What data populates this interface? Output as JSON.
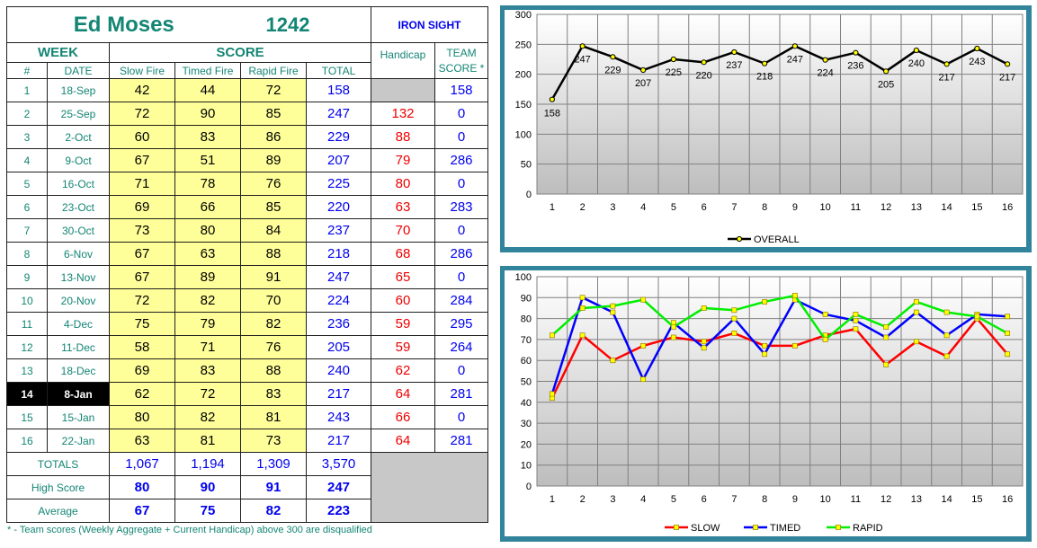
{
  "shooter": {
    "name": "Ed Moses",
    "id": "1242",
    "class": "IRON SIGHT"
  },
  "headers": {
    "week": "WEEK",
    "score": "SCORE",
    "handicap": "Handicap",
    "team_score": "TEAM SCORE *",
    "num": "#",
    "date": "DATE",
    "slow": "Slow Fire",
    "timed": "Timed Fire",
    "rapid": "Rapid Fire",
    "total": "TOTAL"
  },
  "rows": [
    {
      "n": "1",
      "date": "18-Sep",
      "slow": "42",
      "timed": "44",
      "rapid": "72",
      "total": "158",
      "handicap": "",
      "team": "158"
    },
    {
      "n": "2",
      "date": "25-Sep",
      "slow": "72",
      "timed": "90",
      "rapid": "85",
      "total": "247",
      "handicap": "132",
      "team": "0"
    },
    {
      "n": "3",
      "date": "2-Oct",
      "slow": "60",
      "timed": "83",
      "rapid": "86",
      "total": "229",
      "handicap": "88",
      "team": "0"
    },
    {
      "n": "4",
      "date": "9-Oct",
      "slow": "67",
      "timed": "51",
      "rapid": "89",
      "total": "207",
      "handicap": "79",
      "team": "286"
    },
    {
      "n": "5",
      "date": "16-Oct",
      "slow": "71",
      "timed": "78",
      "rapid": "76",
      "total": "225",
      "handicap": "80",
      "team": "0"
    },
    {
      "n": "6",
      "date": "23-Oct",
      "slow": "69",
      "timed": "66",
      "rapid": "85",
      "total": "220",
      "handicap": "63",
      "team": "283"
    },
    {
      "n": "7",
      "date": "30-Oct",
      "slow": "73",
      "timed": "80",
      "rapid": "84",
      "total": "237",
      "handicap": "70",
      "team": "0"
    },
    {
      "n": "8",
      "date": "6-Nov",
      "slow": "67",
      "timed": "63",
      "rapid": "88",
      "total": "218",
      "handicap": "68",
      "team": "286"
    },
    {
      "n": "9",
      "date": "13-Nov",
      "slow": "67",
      "timed": "89",
      "rapid": "91",
      "total": "247",
      "handicap": "65",
      "team": "0"
    },
    {
      "n": "10",
      "date": "20-Nov",
      "slow": "72",
      "timed": "82",
      "rapid": "70",
      "total": "224",
      "handicap": "60",
      "team": "284"
    },
    {
      "n": "11",
      "date": "4-Dec",
      "slow": "75",
      "timed": "79",
      "rapid": "82",
      "total": "236",
      "handicap": "59",
      "team": "295"
    },
    {
      "n": "12",
      "date": "11-Dec",
      "slow": "58",
      "timed": "71",
      "rapid": "76",
      "total": "205",
      "handicap": "59",
      "team": "264"
    },
    {
      "n": "13",
      "date": "18-Dec",
      "slow": "69",
      "timed": "83",
      "rapid": "88",
      "total": "240",
      "handicap": "62",
      "team": "0"
    },
    {
      "n": "14",
      "date": "8-Jan",
      "slow": "62",
      "timed": "72",
      "rapid": "83",
      "total": "217",
      "handicap": "64",
      "team": "281"
    },
    {
      "n": "15",
      "date": "15-Jan",
      "slow": "80",
      "timed": "82",
      "rapid": "81",
      "total": "243",
      "handicap": "66",
      "team": "0"
    },
    {
      "n": "16",
      "date": "22-Jan",
      "slow": "63",
      "timed": "81",
      "rapid": "73",
      "total": "217",
      "handicap": "64",
      "team": "281"
    }
  ],
  "summary": {
    "totals": {
      "label": "TOTALS",
      "slow": "1,067",
      "timed": "1,194",
      "rapid": "1,309",
      "total": "3,570"
    },
    "high": {
      "label": "High Score",
      "slow": "80",
      "timed": "90",
      "rapid": "91",
      "total": "247"
    },
    "average": {
      "label": "Average",
      "slow": "67",
      "timed": "75",
      "rapid": "82",
      "total": "223"
    }
  },
  "footnote": "* - Team scores (Weekly Aggregate + Current Handicap) above 300 are disqualified",
  "colors": {
    "panel": "#31849b",
    "overall": "#000000",
    "slow": "#ff0000",
    "timed": "#0000ff",
    "rapid": "#00ee00",
    "marker": "#ffff00"
  },
  "chart_data": [
    {
      "type": "line",
      "x": [
        1,
        2,
        3,
        4,
        5,
        6,
        7,
        8,
        9,
        10,
        11,
        12,
        13,
        14,
        15,
        16
      ],
      "series": [
        {
          "name": "OVERALL",
          "values": [
            158,
            247,
            229,
            207,
            225,
            220,
            237,
            218,
            247,
            224,
            236,
            205,
            240,
            217,
            243,
            217
          ]
        }
      ],
      "yticks": [
        0,
        50,
        100,
        150,
        200,
        250,
        300
      ],
      "ylim": [
        0,
        300
      ],
      "data_labels": true,
      "grid": true,
      "legend": "bottom"
    },
    {
      "type": "line",
      "x": [
        1,
        2,
        3,
        4,
        5,
        6,
        7,
        8,
        9,
        10,
        11,
        12,
        13,
        14,
        15,
        16
      ],
      "series": [
        {
          "name": "SLOW",
          "values": [
            42,
            72,
            60,
            67,
            71,
            69,
            73,
            67,
            67,
            72,
            75,
            58,
            69,
            62,
            80,
            63
          ]
        },
        {
          "name": "TIMED",
          "values": [
            44,
            90,
            83,
            51,
            78,
            66,
            80,
            63,
            89,
            82,
            79,
            71,
            83,
            72,
            82,
            81
          ]
        },
        {
          "name": "RAPID",
          "values": [
            72,
            85,
            86,
            89,
            76,
            85,
            84,
            88,
            91,
            70,
            82,
            76,
            88,
            83,
            81,
            73
          ]
        }
      ],
      "yticks": [
        0,
        10,
        20,
        30,
        40,
        50,
        60,
        70,
        80,
        90,
        100
      ],
      "ylim": [
        0,
        100
      ],
      "grid": true,
      "legend": "bottom"
    }
  ]
}
